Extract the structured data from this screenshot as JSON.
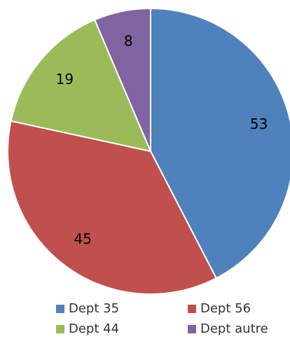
{
  "chart_data": {
    "type": "pie",
    "categories": [
      "Dept 35",
      "Dept 56",
      "Dept 44",
      "Dept autre"
    ],
    "values": [
      53,
      45,
      19,
      8
    ],
    "colors": [
      "#4f81bd",
      "#c0504d",
      "#9bbb59",
      "#8064a2"
    ]
  }
}
